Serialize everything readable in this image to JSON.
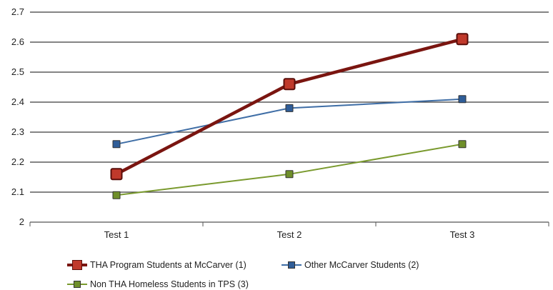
{
  "chart_data": {
    "type": "line",
    "categories": [
      "Test 1",
      "Test 2",
      "Test 3"
    ],
    "ylim": [
      2,
      2.7
    ],
    "yticks": [
      "2",
      "2.1",
      "2.2",
      "2.3",
      "2.4",
      "2.5",
      "2.6",
      "2.7"
    ],
    "grid": true,
    "legend_position": "bottom",
    "series": [
      {
        "name": "THA Program Students at McCarver (1)",
        "values": [
          2.16,
          2.46,
          2.61
        ],
        "color": "#7a1510",
        "marker_color": "#c0392b"
      },
      {
        "name": "Other McCarver Students (2)",
        "values": [
          2.26,
          2.38,
          2.41
        ],
        "color": "#3f6ea6",
        "marker_color": "#2f5d98"
      },
      {
        "name": "Non THA Homeless Students in TPS (3)",
        "values": [
          2.09,
          2.16,
          2.26
        ],
        "color": "#7a9a2e",
        "marker_color": "#6f8f2a"
      }
    ]
  }
}
